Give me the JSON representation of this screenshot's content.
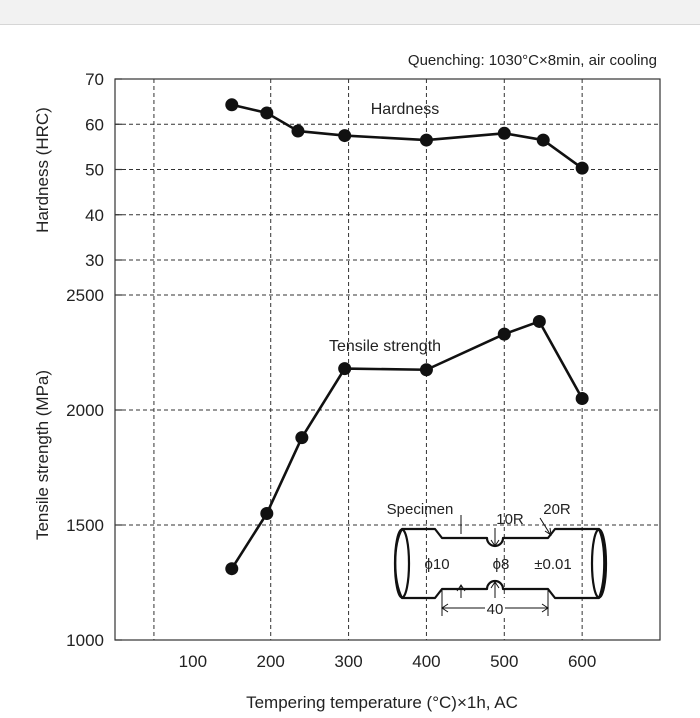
{
  "chart_data": {
    "type": "line",
    "note": "Quenching: 1030°C×8min, air cooling",
    "xlabel": "Tempering temperature (°C)×1h, AC",
    "x_ticks": [
      100,
      200,
      300,
      400,
      500,
      600
    ],
    "xlim": [
      0,
      700
    ],
    "panels": [
      {
        "ylabel": "Hardness (HRC)",
        "ylim": [
          30,
          70
        ],
        "y_ticks": [
          30,
          40,
          50,
          60,
          70
        ],
        "series": [
          {
            "name": "Hardness",
            "x": [
              150,
              195,
              235,
              295,
              400,
              500,
              550,
              600
            ],
            "y": [
              64.3,
              62.5,
              58.5,
              57.5,
              56.5,
              58.0,
              56.5,
              50.3
            ]
          }
        ]
      },
      {
        "ylabel": "Tensile strength (MPa)",
        "ylim": [
          1000,
          2500
        ],
        "y_ticks": [
          1000,
          1500,
          2000,
          2500
        ],
        "series": [
          {
            "name": "Tensile strength",
            "x": [
              150,
              195,
              240,
              295,
              400,
              500,
              545,
              600
            ],
            "y": [
              1310,
              1550,
              1880,
              2180,
              2175,
              2330,
              2385,
              2050
            ]
          }
        ]
      }
    ],
    "inset": {
      "title": "Specimen",
      "labels": [
        "10R",
        "20R",
        "ϕ10",
        "ϕ8",
        "±0.01",
        "40"
      ]
    }
  }
}
